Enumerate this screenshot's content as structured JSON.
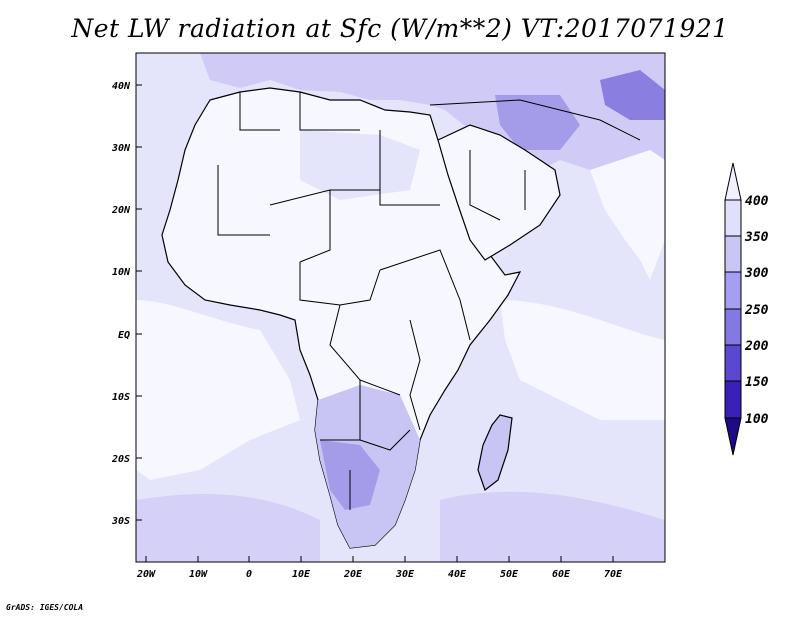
{
  "title": "Net LW radiation at Sfc (W/m**2) VT:2017071921",
  "credit": "GrADS: IGES/COLA",
  "x_axis": {
    "ticks": [
      "20W",
      "10W",
      "0",
      "10E",
      "20E",
      "30E",
      "40E",
      "50E",
      "60E",
      "70E"
    ]
  },
  "y_axis": {
    "ticks": [
      "40N",
      "30N",
      "20N",
      "10N",
      "EQ",
      "10S",
      "20S",
      "30S"
    ]
  },
  "colorbar": {
    "labels": [
      "400",
      "350",
      "300",
      "250",
      "200",
      "150",
      "100"
    ],
    "colors": [
      "#f0f0ff",
      "#e0e0fc",
      "#c9c6f6",
      "#a69ef0",
      "#8378e4",
      "#5a48d0",
      "#3a1fb8",
      "#1c0a8a"
    ]
  },
  "map_colors": {
    "ocean": "#e4e4fb",
    "light": "#f7f7ff",
    "land_mid": "#c8c4f4",
    "land_dark": "#a59ce9",
    "deep": "#8a7fe0",
    "border": "#000000"
  }
}
